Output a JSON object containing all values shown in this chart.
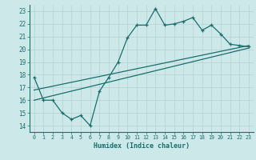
{
  "xlabel": "Humidex (Indice chaleur)",
  "bg_color": "#cce8e8",
  "grid_color": "#b8d4d4",
  "line_color": "#1a6e6e",
  "xlim": [
    -0.5,
    23.5
  ],
  "ylim": [
    13.5,
    23.5
  ],
  "yticks": [
    14,
    15,
    16,
    17,
    18,
    19,
    20,
    21,
    22,
    23
  ],
  "xticks": [
    0,
    1,
    2,
    3,
    4,
    5,
    6,
    7,
    8,
    9,
    10,
    11,
    12,
    13,
    14,
    15,
    16,
    17,
    18,
    19,
    20,
    21,
    22,
    23
  ],
  "series1_x": [
    0,
    1,
    2,
    3,
    4,
    5,
    6,
    7,
    8,
    9,
    10,
    11,
    12,
    13,
    14,
    15,
    16,
    17,
    18,
    19,
    20,
    21,
    22,
    23
  ],
  "series1_y": [
    17.8,
    16.0,
    16.0,
    15.0,
    14.5,
    14.8,
    14.0,
    16.7,
    17.8,
    19.0,
    20.9,
    21.9,
    21.9,
    23.2,
    21.9,
    22.0,
    22.2,
    22.5,
    21.5,
    21.9,
    21.2,
    20.4,
    20.3,
    20.2
  ],
  "series2_x": [
    0,
    23
  ],
  "series2_y": [
    16.8,
    20.3
  ],
  "series3_x": [
    0,
    23
  ],
  "series3_y": [
    16.0,
    20.1
  ]
}
